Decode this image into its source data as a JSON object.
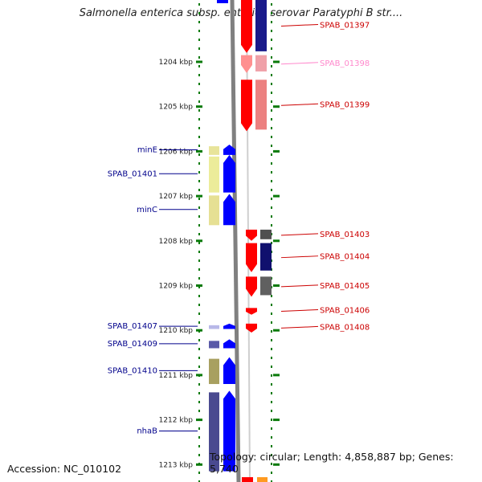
{
  "title": "Salmonella enterica subsp. enterica serovar Paratyphi B str....",
  "footer": {
    "accession": "Accession: NC_010102",
    "topology": "Topology: circular; Length: 4,858,887 bp; Genes: 5,740"
  },
  "colors": {
    "axis_dots": "#0a7a0a",
    "backbone": "#808080",
    "forward_gene": "#0000ff",
    "reverse_gene": "#ff0000",
    "label_left": "#00008b",
    "label_right": "#cc0000",
    "label_faded": "#ff88cc"
  },
  "scale": {
    "ticks": [
      {
        "label": "1204 kbp",
        "kbp": 1204
      },
      {
        "label": "1205 kbp",
        "kbp": 1205
      },
      {
        "label": "1206 kbp",
        "kbp": 1206
      },
      {
        "label": "1207 kbp",
        "kbp": 1207
      },
      {
        "label": "1208 kbp",
        "kbp": 1208
      },
      {
        "label": "1209 kbp",
        "kbp": 1209
      },
      {
        "label": "1210 kbp",
        "kbp": 1210
      },
      {
        "label": "1211 kbp",
        "kbp": 1211
      },
      {
        "label": "1212 kbp",
        "kbp": 1212
      },
      {
        "label": "1213 kbp",
        "kbp": 1213
      }
    ]
  },
  "genes": {
    "left": [
      {
        "label": "minE",
        "start": 1205.85,
        "end": 1206.08
      },
      {
        "label": "SPAB_01401",
        "start": 1206.08,
        "end": 1206.92
      },
      {
        "label": "minC",
        "start": 1206.95,
        "end": 1207.65
      },
      {
        "label": "SPAB_01407",
        "start": 1209.85,
        "end": 1209.97
      },
      {
        "label": "SPAB_01409",
        "start": 1210.2,
        "end": 1210.4
      },
      {
        "label": "SPAB_01410",
        "start": 1210.6,
        "end": 1211.2
      },
      {
        "label": "nhaB",
        "start": 1211.35,
        "end": 1213.15
      }
    ],
    "right": [
      {
        "label": "SPAB_01397",
        "start": 1202.6,
        "end": 1203.8
      },
      {
        "label": "SPAB_01398",
        "start": 1203.85,
        "end": 1204.25
      },
      {
        "label": "SPAB_01399",
        "start": 1204.4,
        "end": 1205.55
      },
      {
        "label": "SPAB_01403",
        "start": 1207.75,
        "end": 1208.0
      },
      {
        "label": "SPAB_01404",
        "start": 1208.05,
        "end": 1208.7
      },
      {
        "label": "SPAB_01405",
        "start": 1208.8,
        "end": 1209.25
      },
      {
        "label": "SPAB_01406",
        "start": 1209.5,
        "end": 1209.65
      },
      {
        "label": "SPAB_01408",
        "start": 1209.85,
        "end": 1210.05
      }
    ]
  }
}
